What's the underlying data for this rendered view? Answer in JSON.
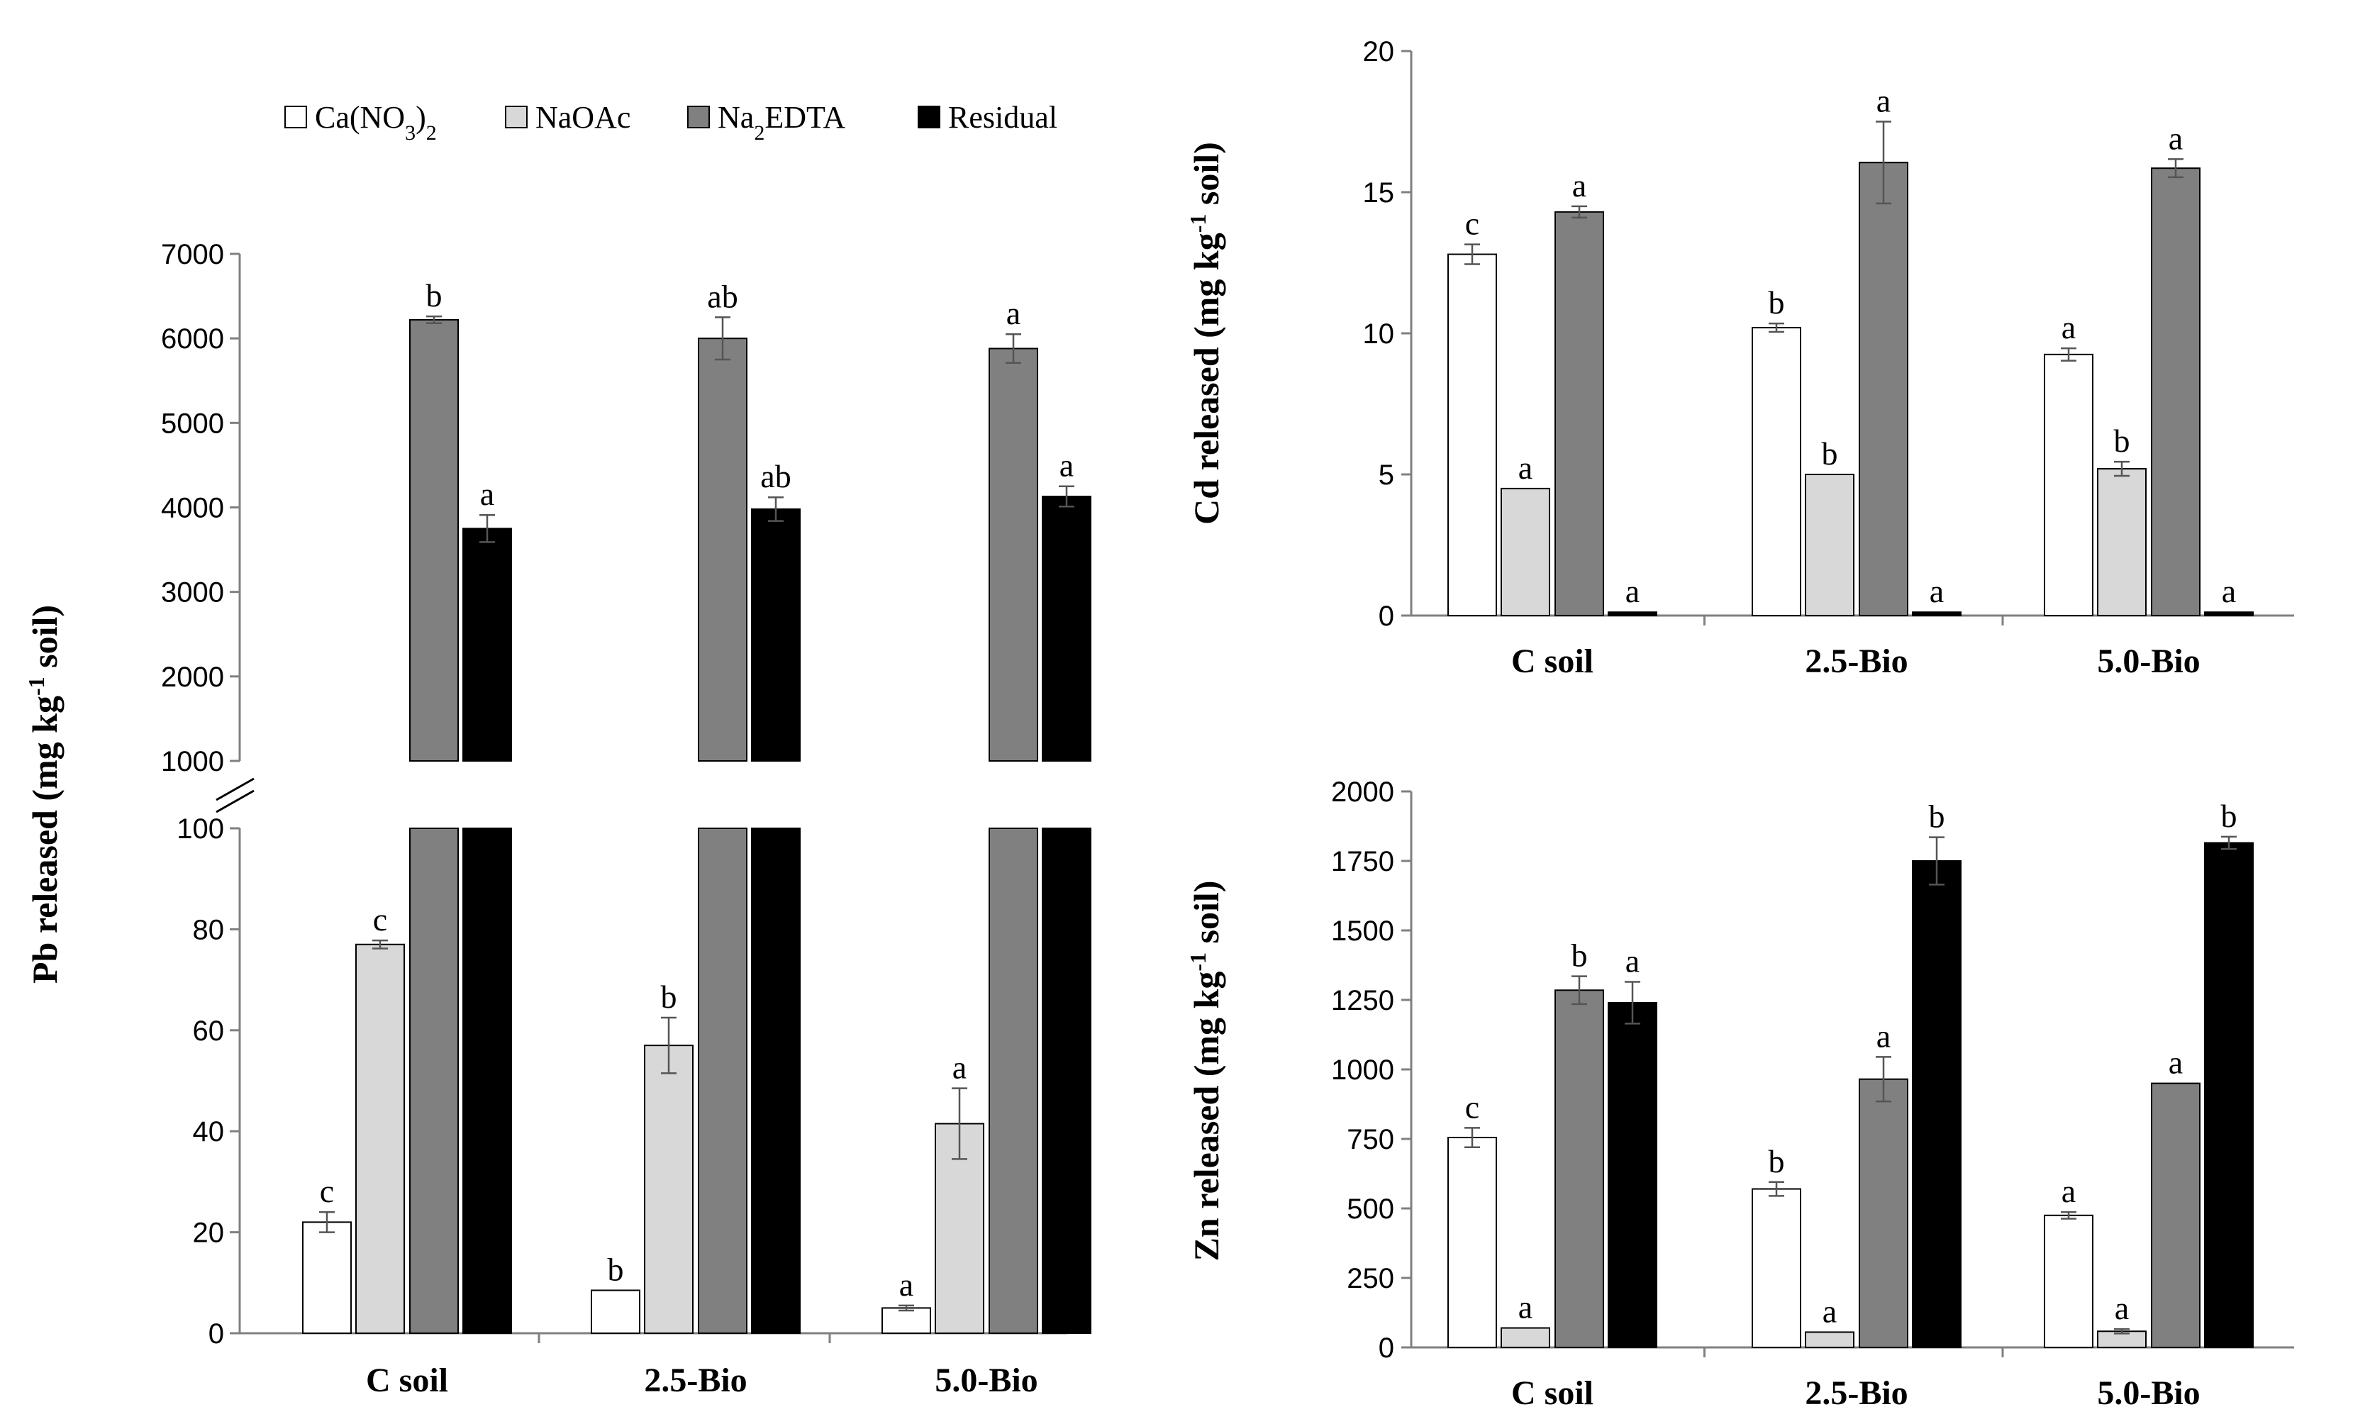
{
  "legend": [
    {
      "label": "Ca(NO3)2",
      "main": "Ca(NO",
      "sub1": "3",
      "mid": ")",
      "sub2": "2",
      "fill": "#ffffff"
    },
    {
      "label": "NaOAc",
      "fill": "#d8d8d8"
    },
    {
      "label": "Na2EDTA",
      "main": "Na",
      "sub1": "2",
      "mid": "EDTA",
      "fill": "#808080"
    },
    {
      "label": "Residual",
      "fill": "#000000"
    }
  ],
  "colors": {
    "ca": "#ffffff",
    "naoac": "#d8d8d8",
    "edta": "#808080",
    "residual": "#000000",
    "axis": "#808080"
  },
  "chart_data": [
    {
      "type": "bar",
      "id": "pb",
      "ylabel": "Pb released",
      "ylabel_unit": "(mg kg-1 soil)",
      "broken_axis": true,
      "lower_ylim": [
        0,
        100
      ],
      "lower_ticks": [
        "0",
        "20",
        "40",
        "60",
        "80",
        "100"
      ],
      "upper_ylim": [
        1000,
        7000
      ],
      "upper_ticks": [
        "1000",
        "2000",
        "3000",
        "4000",
        "5000",
        "6000",
        "7000"
      ],
      "categories": [
        "C soil",
        "2.5-Bio",
        "5.0-Bio"
      ],
      "series": [
        {
          "name": "Ca(NO3)2",
          "values": [
            22,
            8.5,
            5
          ],
          "errors": [
            2,
            0,
            0.5
          ],
          "letters": [
            "c",
            "b",
            "a"
          ]
        },
        {
          "name": "NaOAc",
          "values": [
            77,
            57,
            41.5
          ],
          "errors": [
            0.8,
            5.5,
            7
          ],
          "letters": [
            "c",
            "b",
            "a"
          ]
        },
        {
          "name": "Na2EDTA",
          "values": [
            6220,
            6000,
            5880
          ],
          "errors": [
            40,
            250,
            170
          ],
          "letters": [
            "b",
            "ab",
            "a"
          ]
        },
        {
          "name": "Residual",
          "values": [
            3750,
            3980,
            4130
          ],
          "errors": [
            160,
            140,
            120
          ],
          "letters": [
            "a",
            "ab",
            "a"
          ]
        }
      ]
    },
    {
      "type": "bar",
      "id": "cd",
      "ylabel": "Cd released",
      "ylabel_unit": "(mg kg-1 soil)",
      "ylim": [
        0,
        20
      ],
      "ticks": [
        "0",
        "5",
        "10",
        "15",
        "20"
      ],
      "categories": [
        "C soil",
        "2.5-Bio",
        "5.0-Bio"
      ],
      "series": [
        {
          "name": "Ca(NO3)2",
          "values": [
            12.8,
            10.2,
            9.25
          ],
          "errors": [
            0.35,
            0.15,
            0.22
          ],
          "letters": [
            "c",
            "b",
            "a"
          ]
        },
        {
          "name": "NaOAc",
          "values": [
            4.5,
            5.0,
            5.2
          ],
          "errors": [
            0,
            0,
            0.25
          ],
          "letters": [
            "a",
            "b",
            "b"
          ]
        },
        {
          "name": "Na2EDTA",
          "values": [
            14.3,
            16.05,
            15.85
          ],
          "errors": [
            0.2,
            1.45,
            0.32
          ],
          "letters": [
            "a",
            "a",
            "a"
          ]
        },
        {
          "name": "Residual",
          "values": [
            0.12,
            0.12,
            0.12
          ],
          "errors": [
            0,
            0,
            0
          ],
          "letters": [
            "a",
            "a",
            "a"
          ]
        }
      ]
    },
    {
      "type": "bar",
      "id": "zn",
      "ylabel": "Zn released",
      "ylabel_unit": "(mg kg-1 soil)",
      "ylim": [
        0,
        2000
      ],
      "ticks": [
        "0",
        "250",
        "500",
        "750",
        "1000",
        "1250",
        "1500",
        "1750",
        "2000"
      ],
      "categories": [
        "C soil",
        "2.5-Bio",
        "5.0-Bio"
      ],
      "series": [
        {
          "name": "Ca(NO3)2",
          "values": [
            755,
            570,
            475
          ],
          "errors": [
            35,
            25,
            12
          ],
          "letters": [
            "c",
            "b",
            "a"
          ]
        },
        {
          "name": "NaOAc",
          "values": [
            70,
            55,
            58
          ],
          "errors": [
            0,
            0,
            8
          ],
          "letters": [
            "a",
            "a",
            "a"
          ]
        },
        {
          "name": "Na2EDTA",
          "values": [
            1285,
            965,
            950
          ],
          "errors": [
            50,
            80,
            0
          ],
          "letters": [
            "b",
            "a",
            "a"
          ]
        },
        {
          "name": "Residual",
          "values": [
            1240,
            1750,
            1815
          ],
          "errors": [
            75,
            85,
            22
          ],
          "letters": [
            "a",
            "b",
            "b"
          ]
        }
      ]
    }
  ]
}
